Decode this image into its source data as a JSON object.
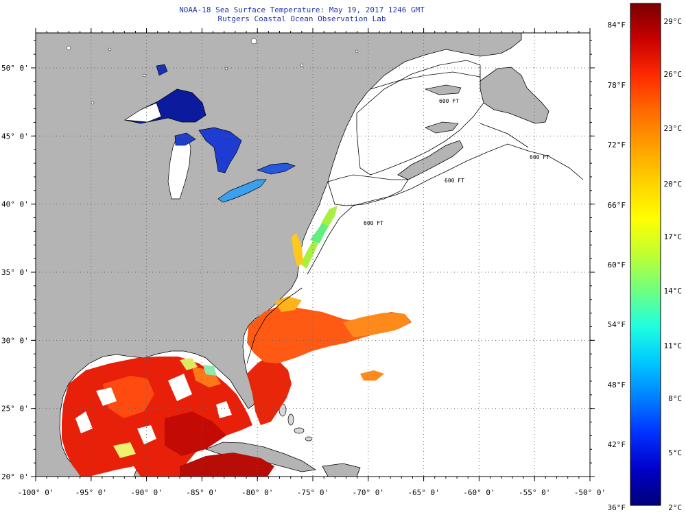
{
  "title": "NOAA-18 Sea Surface Temperature:  May 19, 2017 1246 GMT",
  "subtitle": "Rutgers Coastal Ocean Observation Lab",
  "map": {
    "lon_labels": [
      "-100° 0'",
      "-95° 0'",
      "-90° 0'",
      "-85° 0'",
      "-80° 0'",
      "-75° 0'",
      "-70° 0'",
      "-65° 0'",
      "-60° 0'",
      "-55° 0'",
      "-50° 0'"
    ],
    "lat_labels": [
      "50° 0'",
      "45° 0'",
      "40° 0'",
      "35° 0'",
      "30° 0'",
      "25° 0'",
      "20° 0'"
    ],
    "contour_label": "600 FT",
    "colors": {
      "land": "#b4b4b4",
      "no_data": "#ffffff",
      "coast": "#000000",
      "grid": "#777777"
    }
  },
  "colorbar": {
    "fahrenheit_labels": [
      "84°F",
      "78°F",
      "72°F",
      "66°F",
      "60°F",
      "54°F",
      "48°F",
      "42°F",
      "36°F"
    ],
    "celsius_labels": [
      "29°C",
      "26°C",
      "23°C",
      "20°C",
      "17°C",
      "14°C",
      "11°C",
      "8°C",
      "5°C",
      "2°C"
    ],
    "stops": [
      "#7a0000",
      "#c80000",
      "#ff2a00",
      "#ff6a00",
      "#ffa000",
      "#ffd200",
      "#ffff00",
      "#c0ff30",
      "#70ff80",
      "#20ffe0",
      "#00c8ff",
      "#0080ff",
      "#0030ff",
      "#0000c8",
      "#00007a"
    ]
  }
}
